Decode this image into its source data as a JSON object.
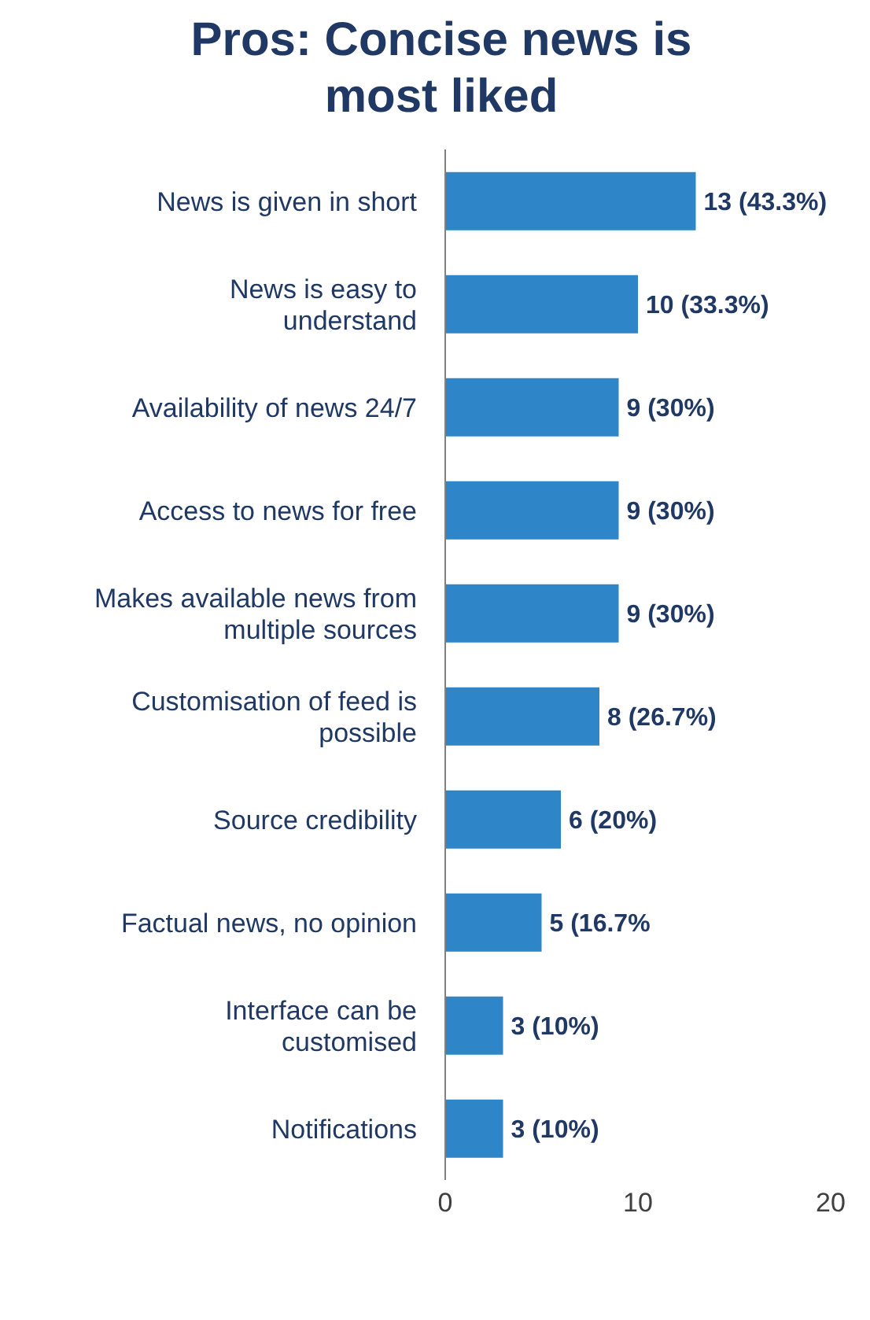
{
  "chart_data": {
    "type": "bar",
    "orientation": "horizontal",
    "title": "Pros: Concise news is most liked",
    "categories": [
      "News is given in short",
      "News is easy to understand",
      "Availability of news 24/7",
      "Access to news for free",
      "Makes available news from multiple sources",
      "Customisation of feed is possible",
      "Source credibility",
      "Factual news, no opinion",
      "Interface can be customised",
      "Notifications"
    ],
    "values": [
      13,
      10,
      9,
      9,
      9,
      8,
      6,
      5,
      3,
      3
    ],
    "value_labels": [
      "13 (43.3%)",
      "10 (33.3%)",
      "9 (30%)",
      "9 (30%)",
      "9 (30%)",
      "8 (26.7%)",
      "6 (20%)",
      "5 (16.7%",
      "3 (10%)",
      "3 (10%)"
    ],
    "color": "#2e86c8",
    "xlim": [
      0,
      20
    ],
    "xticks": [
      0,
      10,
      20
    ],
    "grid": false,
    "legend": false
  }
}
